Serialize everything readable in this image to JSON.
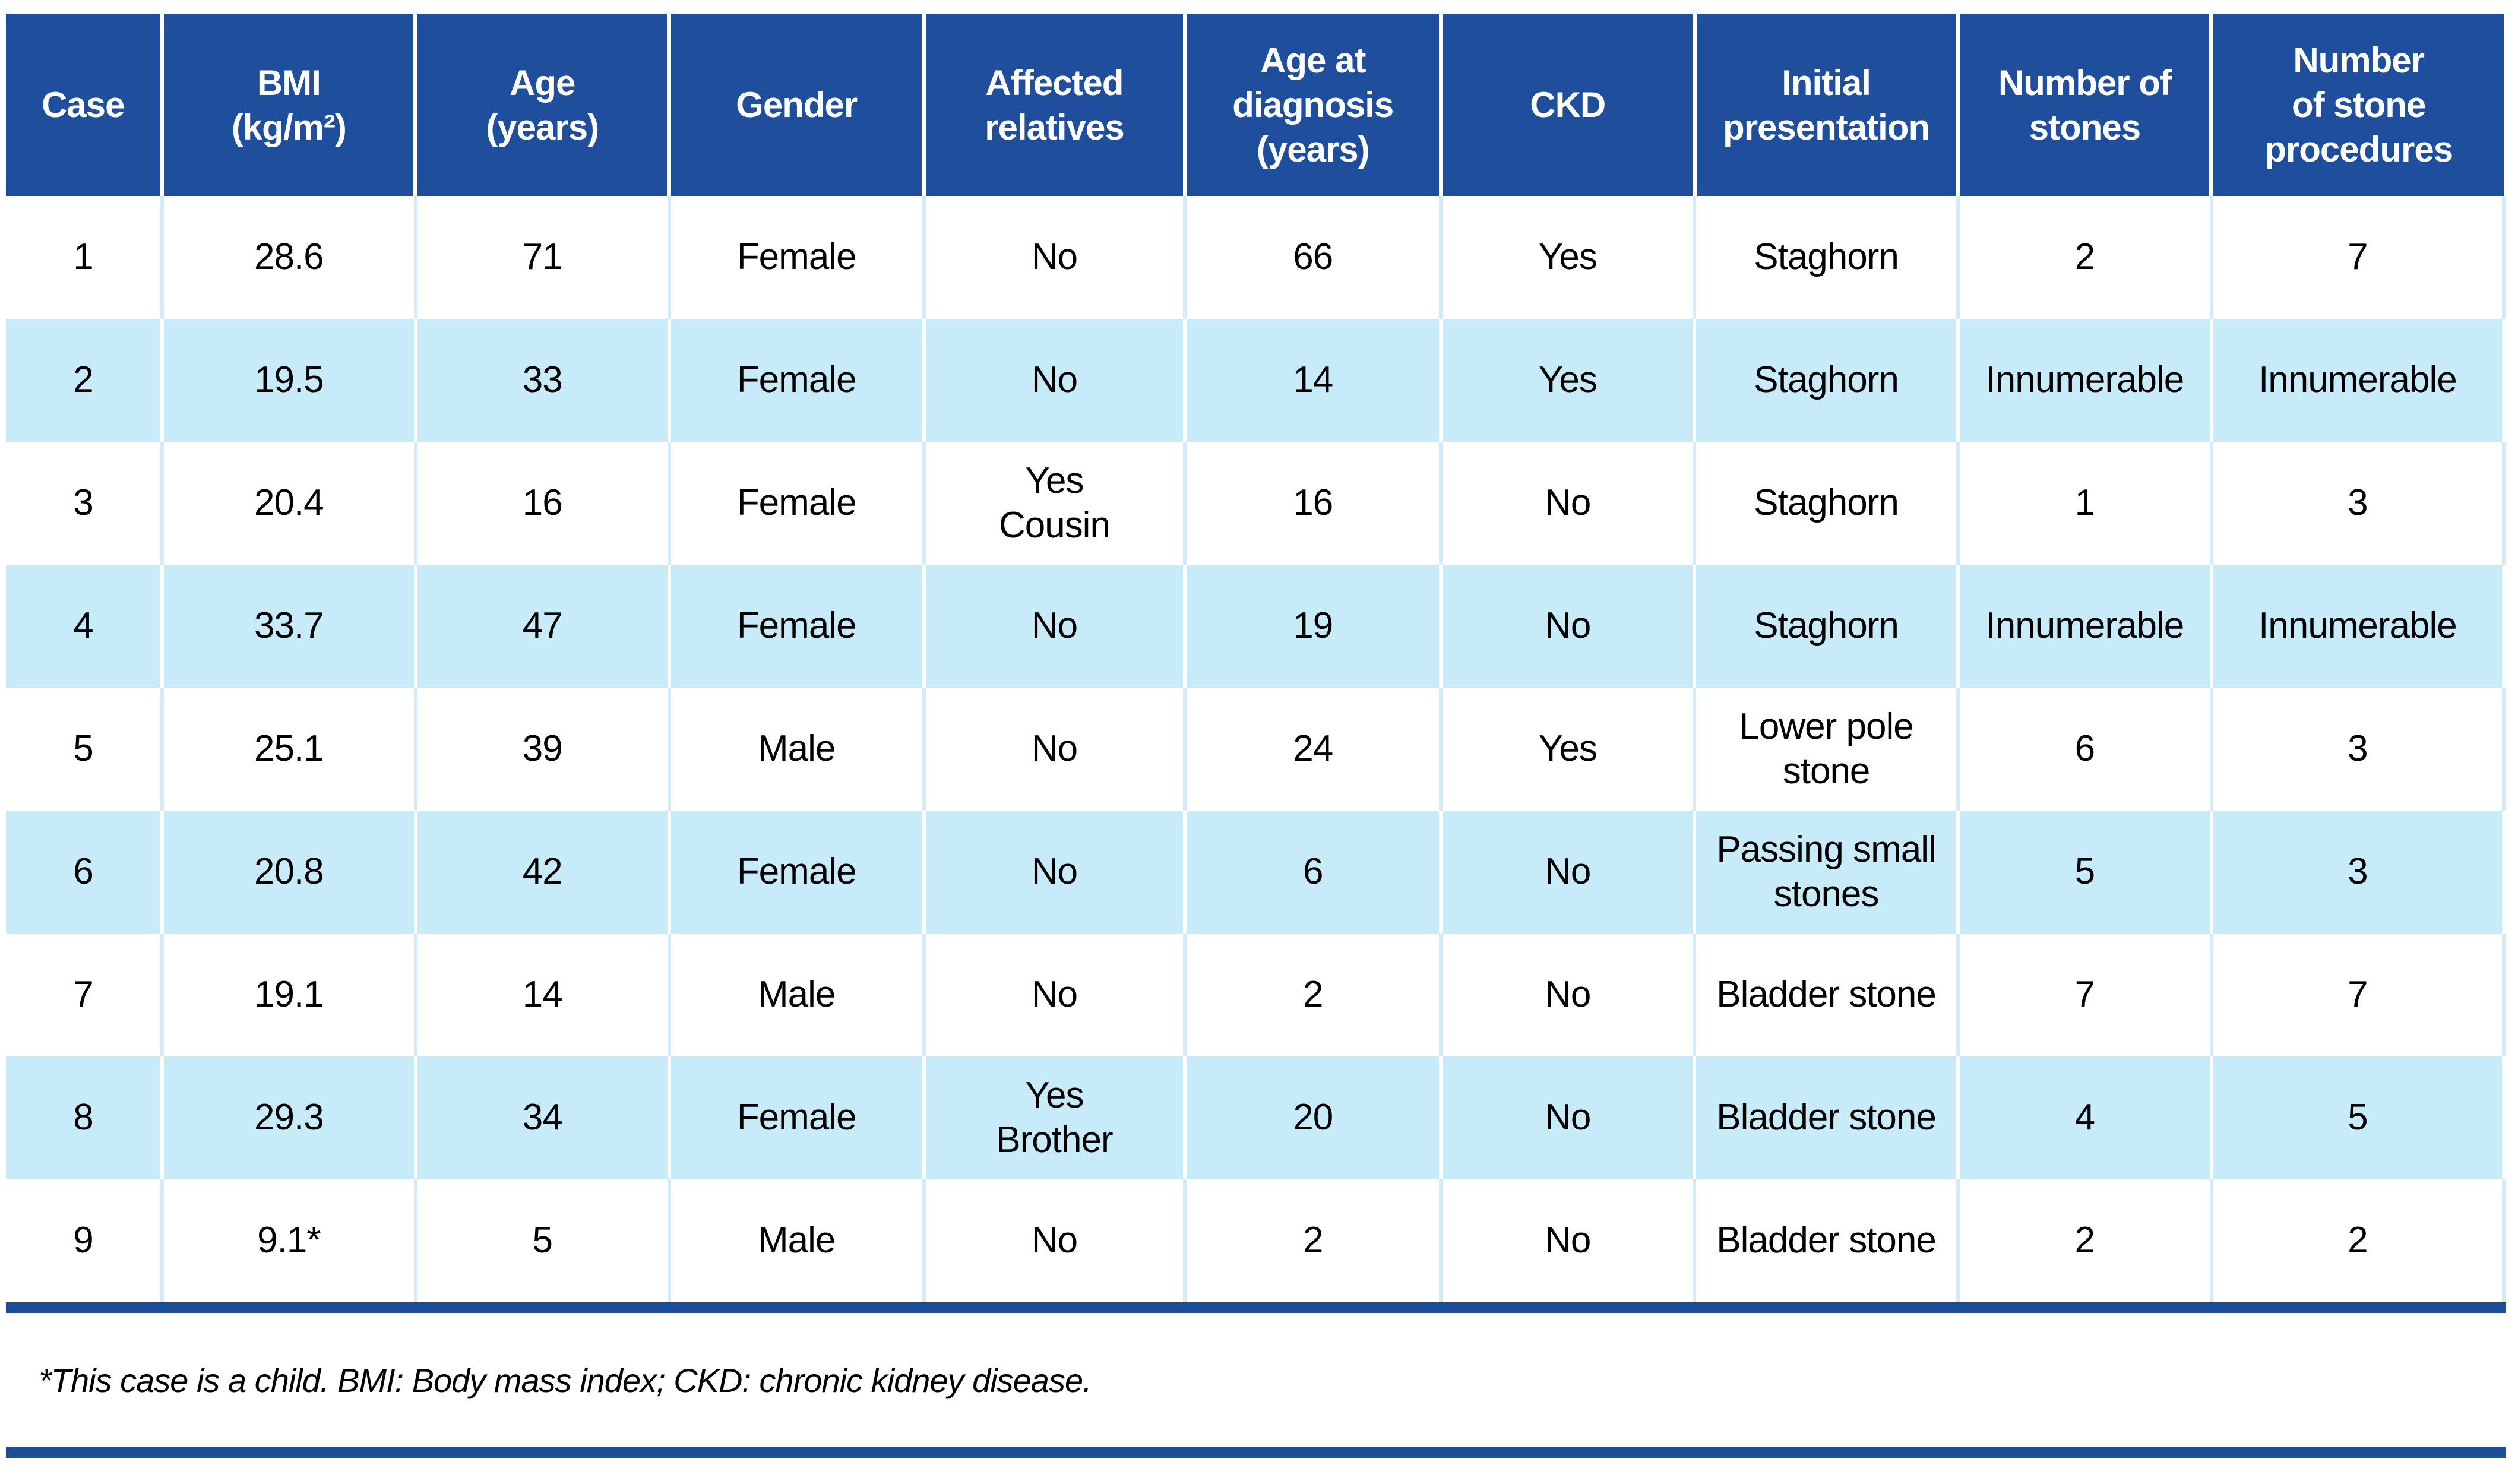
{
  "table": {
    "columns": [
      {
        "label": "Case"
      },
      {
        "label": "BMI\n(kg/m²)"
      },
      {
        "label": "Age\n(years)"
      },
      {
        "label": "Gender"
      },
      {
        "label": "Affected\nrelatives"
      },
      {
        "label": "Age at\ndiagnosis\n(years)"
      },
      {
        "label": "CKD"
      },
      {
        "label": "Initial\npresentation"
      },
      {
        "label": "Number of\nstones"
      },
      {
        "label": "Number\nof stone\nprocedures"
      }
    ],
    "rows": [
      {
        "cells": [
          "1",
          "28.6",
          "71",
          "Female",
          "No",
          "66",
          "Yes",
          "Staghorn",
          "2",
          "7"
        ]
      },
      {
        "cells": [
          "2",
          "19.5",
          "33",
          "Female",
          "No",
          "14",
          "Yes",
          "Staghorn",
          "Innumerable",
          "Innumerable"
        ]
      },
      {
        "cells": [
          "3",
          "20.4",
          "16",
          "Female",
          "Yes\nCousin",
          "16",
          "No",
          "Staghorn",
          "1",
          "3"
        ]
      },
      {
        "cells": [
          "4",
          "33.7",
          "47",
          "Female",
          "No",
          "19",
          "No",
          "Staghorn",
          "Innumerable",
          "Innumerable"
        ]
      },
      {
        "cells": [
          "5",
          "25.1",
          "39",
          "Male",
          "No",
          "24",
          "Yes",
          "Lower pole\nstone",
          "6",
          "3"
        ]
      },
      {
        "cells": [
          "6",
          "20.8",
          "42",
          "Female",
          "No",
          "6",
          "No",
          "Passing small\nstones",
          "5",
          "3"
        ]
      },
      {
        "cells": [
          "7",
          "19.1",
          "14",
          "Male",
          "No",
          "2",
          "No",
          "Bladder stone",
          "7",
          "7"
        ]
      },
      {
        "cells": [
          "8",
          "29.3",
          "34",
          "Female",
          "Yes\nBrother",
          "20",
          "No",
          "Bladder stone",
          "4",
          "5"
        ]
      },
      {
        "cells": [
          "9",
          "9.1*",
          "5",
          "Male",
          "No",
          "2",
          "No",
          "Bladder stone",
          "2",
          "2"
        ]
      }
    ],
    "footnote": "*This case is a child. BMI: Body mass index; CKD: chronic kidney disease."
  },
  "colors": {
    "header_bg": "#1F4F9C",
    "header_text": "#FFFFFF",
    "row_bg": "#FFFFFF",
    "row_alt_bg": "#C7EBF8",
    "separator_on_white": "#D2EDF9",
    "separator_on_blue": "#FFFFFF",
    "rule": "#1C4D99",
    "text": "#000000"
  }
}
